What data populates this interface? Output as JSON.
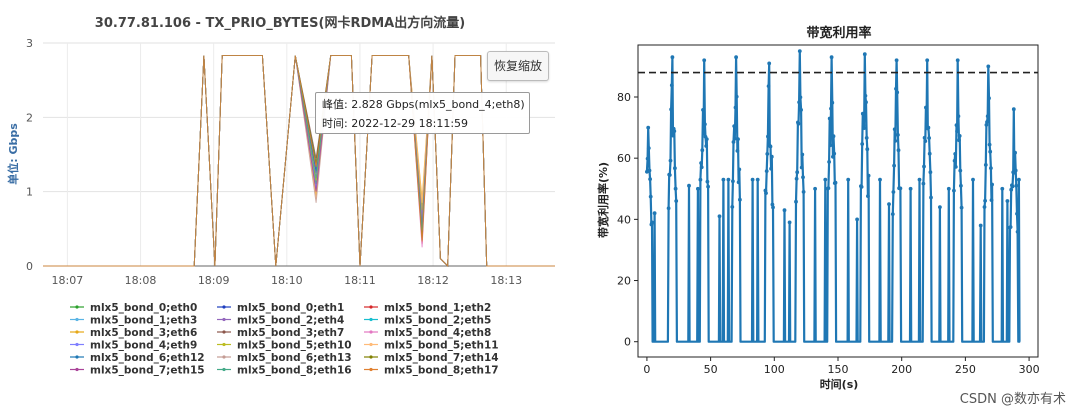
{
  "watermark": "CSDN @数亦有术",
  "left": {
    "title": "30.77.81.106 - TX_PRIO_BYTES(网卡RDMA出方向流量)",
    "ylabel": "单位: Gbps",
    "restore_button": "恢复缩放",
    "tooltip": {
      "peak": "峰值: 2.828 Gbps(mlx5_bond_4;eth8)",
      "time": "时间: 2022-12-29 18:11:59"
    }
  },
  "chart_data": [
    {
      "type": "line",
      "title": "30.77.81.106 - TX_PRIO_BYTES(网卡RDMA出方向流量)",
      "xlabel": "",
      "ylabel": "单位: Gbps",
      "x_range": [
        "18:06:40",
        "18:13:40"
      ],
      "ylim": [
        0,
        3
      ],
      "y_ticks": [
        0,
        1,
        2,
        3
      ],
      "x_ticks": [
        "18:07",
        "18:08",
        "18:09",
        "18:10",
        "18:11",
        "18:12",
        "18:13"
      ],
      "grid": true,
      "legend_position": "bottom",
      "base_profile": [
        [
          "18:06:40",
          0
        ],
        [
          "18:08:44",
          0
        ],
        [
          "18:08:52",
          2.83
        ],
        [
          "18:09:01",
          0
        ],
        [
          "18:09:07",
          2.83
        ],
        [
          "18:09:40",
          2.83
        ],
        [
          "18:09:51",
          0
        ],
        [
          "18:10:07",
          2.83
        ],
        [
          "18:10:24",
          1.2
        ],
        [
          "18:10:36",
          2.83
        ],
        [
          "18:10:53",
          2.83
        ],
        [
          "18:11:00",
          0
        ],
        [
          "18:11:10",
          2.83
        ],
        [
          "18:11:40",
          2.83
        ],
        [
          "18:11:51",
          0.6
        ],
        [
          "18:11:59",
          2.828
        ],
        [
          "18:12:06",
          0.1
        ],
        [
          "18:12:12",
          0
        ],
        [
          "18:12:18",
          2.83
        ],
        [
          "18:12:39",
          2.83
        ],
        [
          "18:12:44",
          0
        ],
        [
          "18:13:40",
          0
        ]
      ],
      "series": [
        {
          "name": "mlx5_bond_0;eth0",
          "color": "#2ca02c",
          "dip1": 1.1,
          "dip2": 0.55
        },
        {
          "name": "mlx5_bond_0;eth1",
          "color": "#1f3fbf",
          "dip1": 1.25,
          "dip2": 0.62
        },
        {
          "name": "mlx5_bond_1;eth2",
          "color": "#d62728",
          "dip1": 1.35,
          "dip2": 0.3
        },
        {
          "name": "mlx5_bond_1;eth3",
          "color": "#5ab4e5",
          "dip1": 1.0,
          "dip2": 0.7
        },
        {
          "name": "mlx5_bond_2;eth4",
          "color": "#9467bd",
          "dip1": 1.3,
          "dip2": 0.8
        },
        {
          "name": "mlx5_bond_2;eth5",
          "color": "#17becf",
          "dip1": 1.4,
          "dip2": 0.45
        },
        {
          "name": "mlx5_bond_3;eth6",
          "color": "#e6a817",
          "dip1": 0.95,
          "dip2": 0.9
        },
        {
          "name": "mlx5_bond_3;eth7",
          "color": "#8c564b",
          "dip1": 1.45,
          "dip2": 0.5
        },
        {
          "name": "mlx5_bond_4;eth8",
          "color": "#e377c2",
          "dip1": 1.2,
          "dip2": 0.25
        },
        {
          "name": "mlx5_bond_4;eth9",
          "color": "#7f7fff",
          "dip1": 1.05,
          "dip2": 0.65
        },
        {
          "name": "mlx5_bond_5;eth10",
          "color": "#bcbd22",
          "dip1": 1.15,
          "dip2": 0.75
        },
        {
          "name": "mlx5_bond_5;eth11",
          "color": "#ffbb78",
          "dip1": 0.9,
          "dip2": 0.85
        },
        {
          "name": "mlx5_bond_6;eth12",
          "color": "#1f77b4",
          "dip1": 1.28,
          "dip2": 0.4
        },
        {
          "name": "mlx5_bond_6;eth13",
          "color": "#c49c94",
          "dip1": 0.85,
          "dip2": 0.6
        },
        {
          "name": "mlx5_bond_7;eth14",
          "color": "#808000",
          "dip1": 1.38,
          "dip2": 0.35
        },
        {
          "name": "mlx5_bond_7;eth15",
          "color": "#aa4499",
          "dip1": 1.0,
          "dip2": 0.55
        },
        {
          "name": "mlx5_bond_8;eth16",
          "color": "#44aa88",
          "dip1": 1.18,
          "dip2": 0.48
        },
        {
          "name": "mlx5_bond_8;eth17",
          "color": "#e08030",
          "dip1": 1.33,
          "dip2": 0.33
        }
      ]
    },
    {
      "type": "line",
      "title": "带宽利用率",
      "xlabel": "时间(s)",
      "ylabel": "带宽利用率(%)",
      "xlim": [
        -7,
        307
      ],
      "ylim": [
        -5,
        97
      ],
      "x_ticks": [
        0,
        50,
        100,
        150,
        200,
        250,
        300
      ],
      "y_ticks": [
        0,
        20,
        40,
        60,
        80
      ],
      "grid": false,
      "color": "#1f77b4",
      "threshold": 88,
      "threshold_style": "dashed",
      "burst_centers": [
        1,
        20,
        45,
        70,
        96,
        120,
        145,
        171,
        196,
        220,
        244,
        268,
        288
      ],
      "burst_peaks": [
        70,
        93,
        92,
        93,
        91,
        95,
        93,
        94,
        92,
        92,
        92,
        90,
        76
      ],
      "isolated_spikes": [
        [
          6,
          42
        ],
        [
          33,
          51
        ],
        [
          40,
          50
        ],
        [
          57,
          41
        ],
        [
          60,
          53
        ],
        [
          64,
          53
        ],
        [
          83,
          53
        ],
        [
          87,
          53
        ],
        [
          108,
          43
        ],
        [
          112,
          39
        ],
        [
          132,
          50
        ],
        [
          140,
          53
        ],
        [
          158,
          53
        ],
        [
          165,
          40
        ],
        [
          183,
          53
        ],
        [
          190,
          45
        ],
        [
          207,
          50
        ],
        [
          214,
          53
        ],
        [
          230,
          44
        ],
        [
          237,
          50
        ],
        [
          256,
          53
        ],
        [
          262,
          38
        ],
        [
          279,
          50
        ],
        [
          283,
          46
        ],
        [
          292,
          53
        ]
      ]
    }
  ]
}
